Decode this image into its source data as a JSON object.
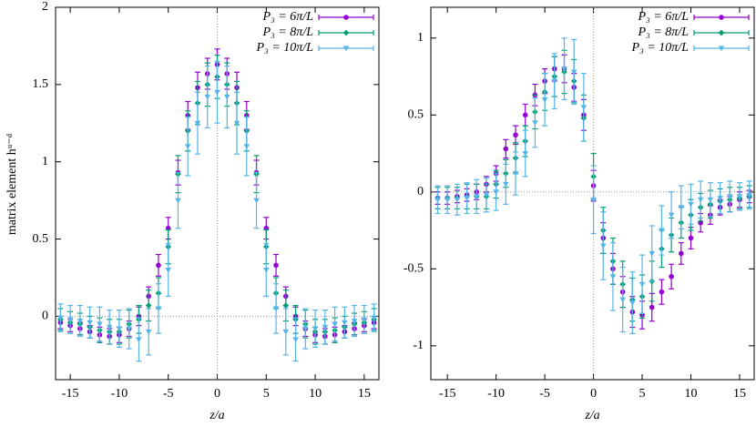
{
  "chart_data": [
    {
      "type": "errorbar",
      "ylabel": "matrix element hᵘ⁻ᵈ",
      "xlabel": "z/a",
      "xlim": [
        -16.5,
        16.5
      ],
      "xticks": [
        -15,
        -10,
        -5,
        0,
        5,
        10,
        15
      ],
      "ylim": [
        -0.41,
        2
      ],
      "yticks": [
        0,
        0.5,
        1,
        1.5,
        2
      ],
      "zero_lines": true,
      "legend": "top-right",
      "x": [
        -16,
        -15,
        -14,
        -13,
        -12,
        -11,
        -10,
        -9,
        -8,
        -7,
        -6,
        -5,
        -4,
        -3,
        -2,
        -1,
        0,
        1,
        2,
        3,
        4,
        5,
        6,
        7,
        8,
        9,
        10,
        11,
        12,
        13,
        14,
        15,
        16
      ],
      "series": [
        {
          "name": "P₃ = 6π/L",
          "color": "#9400d3",
          "marker": "circle",
          "values": [
            -0.04,
            -0.06,
            -0.08,
            -0.1,
            -0.12,
            -0.13,
            -0.12,
            -0.08,
            0.0,
            0.13,
            0.33,
            0.57,
            0.93,
            1.3,
            1.48,
            1.57,
            1.63,
            1.57,
            1.48,
            1.3,
            0.93,
            0.57,
            0.33,
            0.13,
            0.0,
            -0.08,
            -0.12,
            -0.13,
            -0.12,
            -0.1,
            -0.08,
            -0.06,
            -0.04
          ],
          "errors": [
            0.04,
            0.04,
            0.04,
            0.04,
            0.05,
            0.05,
            0.05,
            0.05,
            0.06,
            0.06,
            0.07,
            0.07,
            0.08,
            0.09,
            0.1,
            0.1,
            0.1,
            0.1,
            0.1,
            0.09,
            0.08,
            0.07,
            0.07,
            0.06,
            0.06,
            0.05,
            0.05,
            0.05,
            0.05,
            0.04,
            0.04,
            0.04,
            0.04
          ]
        },
        {
          "name": "P₃ = 8π/L",
          "color": "#009e73",
          "marker": "diamond",
          "values": [
            -0.02,
            -0.04,
            -0.05,
            -0.07,
            -0.09,
            -0.1,
            -0.1,
            -0.05,
            -0.02,
            0.07,
            0.15,
            0.45,
            0.92,
            1.2,
            1.38,
            1.5,
            1.55,
            1.5,
            1.38,
            1.2,
            0.92,
            0.45,
            0.15,
            0.07,
            -0.02,
            -0.05,
            -0.1,
            -0.1,
            -0.09,
            -0.07,
            -0.05,
            -0.04,
            -0.02
          ],
          "errors": [
            0.07,
            0.07,
            0.07,
            0.07,
            0.08,
            0.08,
            0.08,
            0.09,
            0.09,
            0.1,
            0.1,
            0.11,
            0.12,
            0.13,
            0.14,
            0.14,
            0.14,
            0.14,
            0.14,
            0.13,
            0.12,
            0.11,
            0.1,
            0.1,
            0.09,
            0.09,
            0.08,
            0.08,
            0.08,
            0.07,
            0.07,
            0.07,
            0.07
          ]
        },
        {
          "name": "P₃ = 10π/L",
          "color": "#56b4e9",
          "marker": "triangle",
          "values": [
            -0.01,
            -0.02,
            -0.03,
            -0.04,
            -0.05,
            -0.07,
            -0.08,
            -0.08,
            -0.15,
            -0.1,
            0.05,
            0.3,
            0.75,
            1.1,
            1.25,
            1.42,
            1.45,
            1.42,
            1.25,
            1.1,
            0.75,
            0.3,
            0.05,
            -0.1,
            -0.15,
            -0.08,
            -0.08,
            -0.07,
            -0.05,
            -0.04,
            -0.03,
            -0.02,
            -0.01
          ],
          "errors": [
            0.09,
            0.09,
            0.1,
            0.1,
            0.11,
            0.11,
            0.12,
            0.13,
            0.14,
            0.15,
            0.16,
            0.17,
            0.18,
            0.19,
            0.2,
            0.2,
            0.2,
            0.2,
            0.2,
            0.19,
            0.18,
            0.17,
            0.16,
            0.15,
            0.14,
            0.13,
            0.12,
            0.11,
            0.11,
            0.1,
            0.1,
            0.09,
            0.09
          ]
        }
      ]
    },
    {
      "type": "errorbar",
      "xlabel": "z/a",
      "xlim": [
        -16.7,
        16.5
      ],
      "xticks": [
        -15,
        -10,
        -5,
        0,
        5,
        10,
        15
      ],
      "ylim": [
        -1.22,
        1.2
      ],
      "yticks": [
        -1,
        -0.5,
        0,
        0.5,
        1
      ],
      "zero_lines": true,
      "legend": "top-right",
      "x": [
        -16,
        -15,
        -14,
        -13,
        -12,
        -11,
        -10,
        -9,
        -8,
        -7,
        -6,
        -5,
        -4,
        -3,
        -2,
        -1,
        0,
        1,
        2,
        3,
        4,
        5,
        6,
        7,
        8,
        9,
        10,
        11,
        12,
        13,
        14,
        15,
        16
      ],
      "series": [
        {
          "name": "P₃ = 6π/L",
          "color": "#9400d3",
          "marker": "circle",
          "values": [
            -0.04,
            -0.04,
            -0.03,
            -0.02,
            0.0,
            0.05,
            0.12,
            0.28,
            0.37,
            0.5,
            0.63,
            0.72,
            0.8,
            0.8,
            0.68,
            0.5,
            0.04,
            -0.3,
            -0.5,
            -0.65,
            -0.78,
            -0.8,
            -0.75,
            -0.65,
            -0.55,
            -0.4,
            -0.3,
            -0.2,
            -0.15,
            -0.1,
            -0.08,
            -0.05,
            -0.03
          ],
          "errors": [
            0.04,
            0.04,
            0.04,
            0.04,
            0.05,
            0.05,
            0.05,
            0.06,
            0.06,
            0.07,
            0.07,
            0.08,
            0.08,
            0.09,
            0.09,
            0.1,
            0.1,
            0.1,
            0.1,
            0.1,
            0.1,
            0.09,
            0.09,
            0.08,
            0.08,
            0.07,
            0.07,
            0.06,
            0.06,
            0.05,
            0.05,
            0.05,
            0.04
          ]
        },
        {
          "name": "P₃ = 8π/L",
          "color": "#009e73",
          "marker": "diamond",
          "values": [
            -0.04,
            -0.04,
            -0.04,
            -0.03,
            -0.03,
            -0.03,
            0.05,
            0.12,
            0.22,
            0.33,
            0.52,
            0.65,
            0.75,
            0.78,
            0.72,
            0.48,
            0.1,
            -0.25,
            -0.45,
            -0.6,
            -0.7,
            -0.68,
            -0.58,
            -0.37,
            -0.28,
            -0.2,
            -0.15,
            -0.1,
            -0.08,
            -0.06,
            -0.05,
            -0.04,
            -0.03
          ],
          "errors": [
            0.07,
            0.07,
            0.07,
            0.08,
            0.08,
            0.08,
            0.09,
            0.09,
            0.1,
            0.1,
            0.11,
            0.12,
            0.13,
            0.14,
            0.14,
            0.15,
            0.15,
            0.15,
            0.15,
            0.15,
            0.14,
            0.14,
            0.13,
            0.12,
            0.11,
            0.1,
            0.1,
            0.09,
            0.09,
            0.08,
            0.08,
            0.07,
            0.07
          ]
        },
        {
          "name": "P₃ = 10π/L",
          "color": "#56b4e9",
          "marker": "triangle",
          "values": [
            -0.05,
            -0.05,
            -0.05,
            -0.04,
            -0.03,
            -0.02,
            0.0,
            0.05,
            0.12,
            0.25,
            0.45,
            0.6,
            0.72,
            0.8,
            0.78,
            0.55,
            -0.05,
            -0.35,
            -0.55,
            -0.7,
            -0.72,
            -0.6,
            -0.4,
            -0.25,
            -0.15,
            -0.1,
            -0.08,
            -0.05,
            -0.05,
            -0.04,
            -0.03,
            -0.03,
            -0.02
          ],
          "errors": [
            0.09,
            0.09,
            0.1,
            0.1,
            0.11,
            0.11,
            0.12,
            0.13,
            0.14,
            0.15,
            0.16,
            0.17,
            0.18,
            0.2,
            0.21,
            0.22,
            0.22,
            0.22,
            0.22,
            0.21,
            0.2,
            0.19,
            0.18,
            0.16,
            0.15,
            0.14,
            0.13,
            0.12,
            0.11,
            0.1,
            0.1,
            0.09,
            0.09
          ]
        }
      ]
    }
  ]
}
